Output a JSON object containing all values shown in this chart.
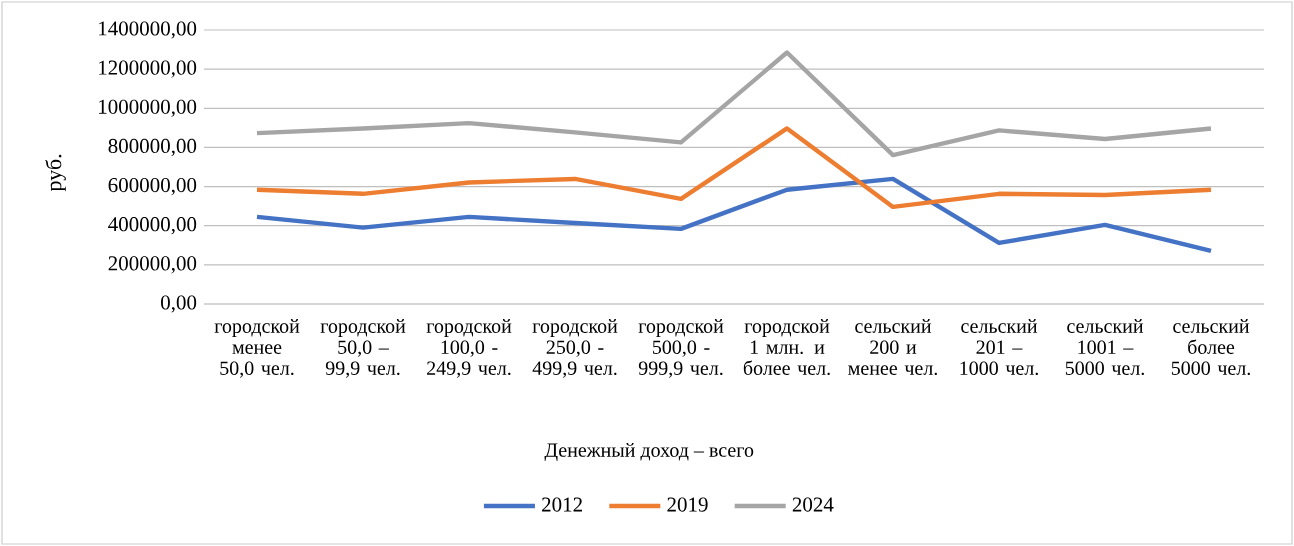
{
  "chart_data": {
    "type": "line",
    "xlabel": "Денежный доход – всего",
    "ylabel": "руб.",
    "categories": [
      "городской менее 50,0 чел.",
      "городской 50,0 – 99,9 чел.",
      "городской 100,0 - 249,9 чел.",
      "городской 250,0 - 499,9 чел.",
      "городской 500,0 - 999,9 чел.",
      "городской 1 млн. и более чел.",
      "сельский 200 и менее чел.",
      "сельский 201 – 1000 чел.",
      "сельский 1001 – 5000 чел.",
      "сельский более 5000 чел."
    ],
    "series": [
      {
        "name": "2012",
        "color": "#4472c4",
        "values": [
          445000,
          390000,
          445000,
          414000,
          384000,
          584000,
          639000,
          312000,
          404000,
          271000
        ]
      },
      {
        "name": "2019",
        "color": "#ed7d31",
        "values": [
          584000,
          563000,
          621000,
          639000,
          537000,
          897000,
          496000,
          563000,
          557000,
          584000
        ]
      },
      {
        "name": "2024",
        "color": "#a5a5a5",
        "values": [
          873000,
          897000,
          924000,
          877000,
          826000,
          1285000,
          761000,
          887000,
          843000,
          897000
        ]
      }
    ],
    "ylim": [
      0,
      1400000
    ],
    "yticks": [
      {
        "value": 0,
        "label": "0,00"
      },
      {
        "value": 200000,
        "label": "200000,00"
      },
      {
        "value": 400000,
        "label": "400000,00"
      },
      {
        "value": 600000,
        "label": "600000,00"
      },
      {
        "value": 800000,
        "label": "800000,00"
      },
      {
        "value": 1000000,
        "label": "1000000,00"
      },
      {
        "value": 1200000,
        "label": "1200000,00"
      },
      {
        "value": 1400000,
        "label": "1400000,00"
      }
    ],
    "grid": "y",
    "legend": "bottom",
    "marker": "none",
    "line_style": "solid"
  }
}
